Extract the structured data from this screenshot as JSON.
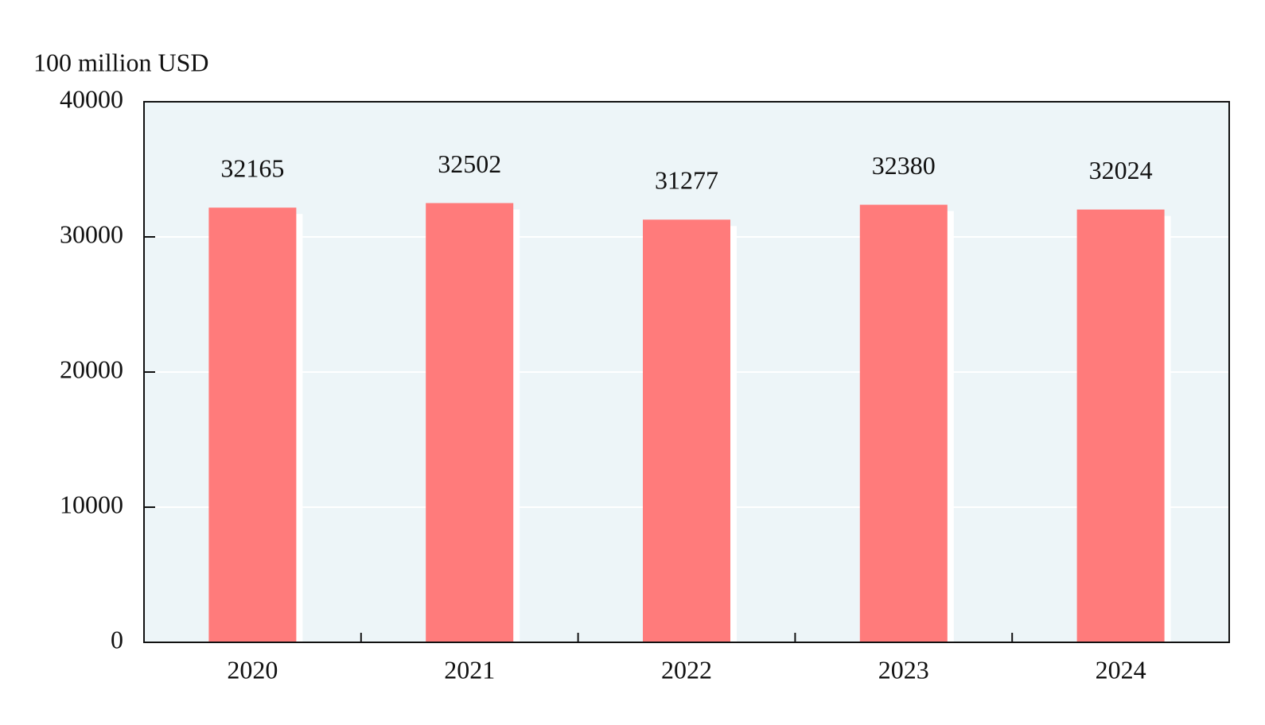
{
  "chart_data": {
    "type": "bar",
    "y_axis_label": "100 million USD",
    "categories": [
      "2020",
      "2021",
      "2022",
      "2023",
      "2024"
    ],
    "values": [
      32165,
      32502,
      31277,
      32380,
      32024
    ],
    "color": "#ff7b7b",
    "ylim": [
      0,
      40000
    ],
    "yticks": [
      0,
      10000,
      20000,
      30000,
      40000
    ],
    "grid": true
  }
}
